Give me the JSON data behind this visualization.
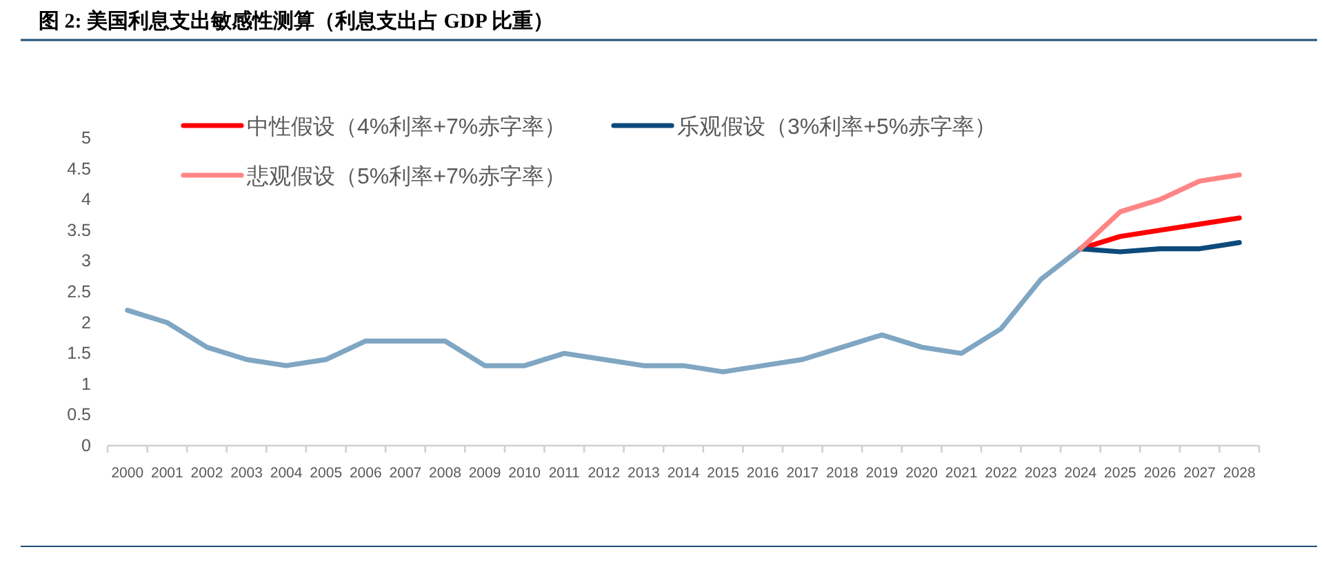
{
  "chart_data": {
    "type": "line",
    "title": "图 2: 美国利息支出敏感性测算（利息支出占 GDP 比重）",
    "categories": [
      "2000",
      "2001",
      "2002",
      "2003",
      "2004",
      "2005",
      "2006",
      "2007",
      "2008",
      "2009",
      "2010",
      "2011",
      "2012",
      "2013",
      "2014",
      "2015",
      "2016",
      "2017",
      "2018",
      "2019",
      "2020",
      "2021",
      "2022",
      "2023",
      "2024",
      "2025",
      "2026",
      "2027",
      "2028"
    ],
    "series": [
      {
        "color": "#7fa6c2",
        "values": [
          2.2,
          2.0,
          1.6,
          1.4,
          1.3,
          1.4,
          1.7,
          1.7,
          1.7,
          1.3,
          1.3,
          1.5,
          1.4,
          1.3,
          1.3,
          1.2,
          1.3,
          1.4,
          1.6,
          1.8,
          1.6,
          1.5,
          1.9,
          2.7,
          3.2,
          null,
          null,
          null,
          null
        ]
      },
      {
        "name": "中性假设（4%利率+7%赤字率）",
        "color": "#ff0000",
        "values": [
          null,
          null,
          null,
          null,
          null,
          null,
          null,
          null,
          null,
          null,
          null,
          null,
          null,
          null,
          null,
          null,
          null,
          null,
          null,
          null,
          null,
          null,
          null,
          null,
          3.2,
          3.4,
          3.5,
          3.6,
          3.7
        ]
      },
      {
        "name": "乐观假设（3%利率+5%赤字率）",
        "color": "#0d4a7c",
        "values": [
          null,
          null,
          null,
          null,
          null,
          null,
          null,
          null,
          null,
          null,
          null,
          null,
          null,
          null,
          null,
          null,
          null,
          null,
          null,
          null,
          null,
          null,
          null,
          null,
          3.2,
          3.15,
          3.2,
          3.2,
          3.3
        ]
      },
      {
        "name": "悲观假设（5%利率+7%赤字率）",
        "color": "#ff8585",
        "values": [
          null,
          null,
          null,
          null,
          null,
          null,
          null,
          null,
          null,
          null,
          null,
          null,
          null,
          null,
          null,
          null,
          null,
          null,
          null,
          null,
          null,
          null,
          null,
          null,
          3.2,
          3.8,
          4.0,
          4.3,
          4.4
        ]
      }
    ],
    "ylim": [
      0,
      5
    ],
    "yticks": [
      0,
      0.5,
      1,
      1.5,
      2,
      2.5,
      3,
      3.5,
      4,
      4.5,
      5
    ],
    "legend": "top"
  }
}
